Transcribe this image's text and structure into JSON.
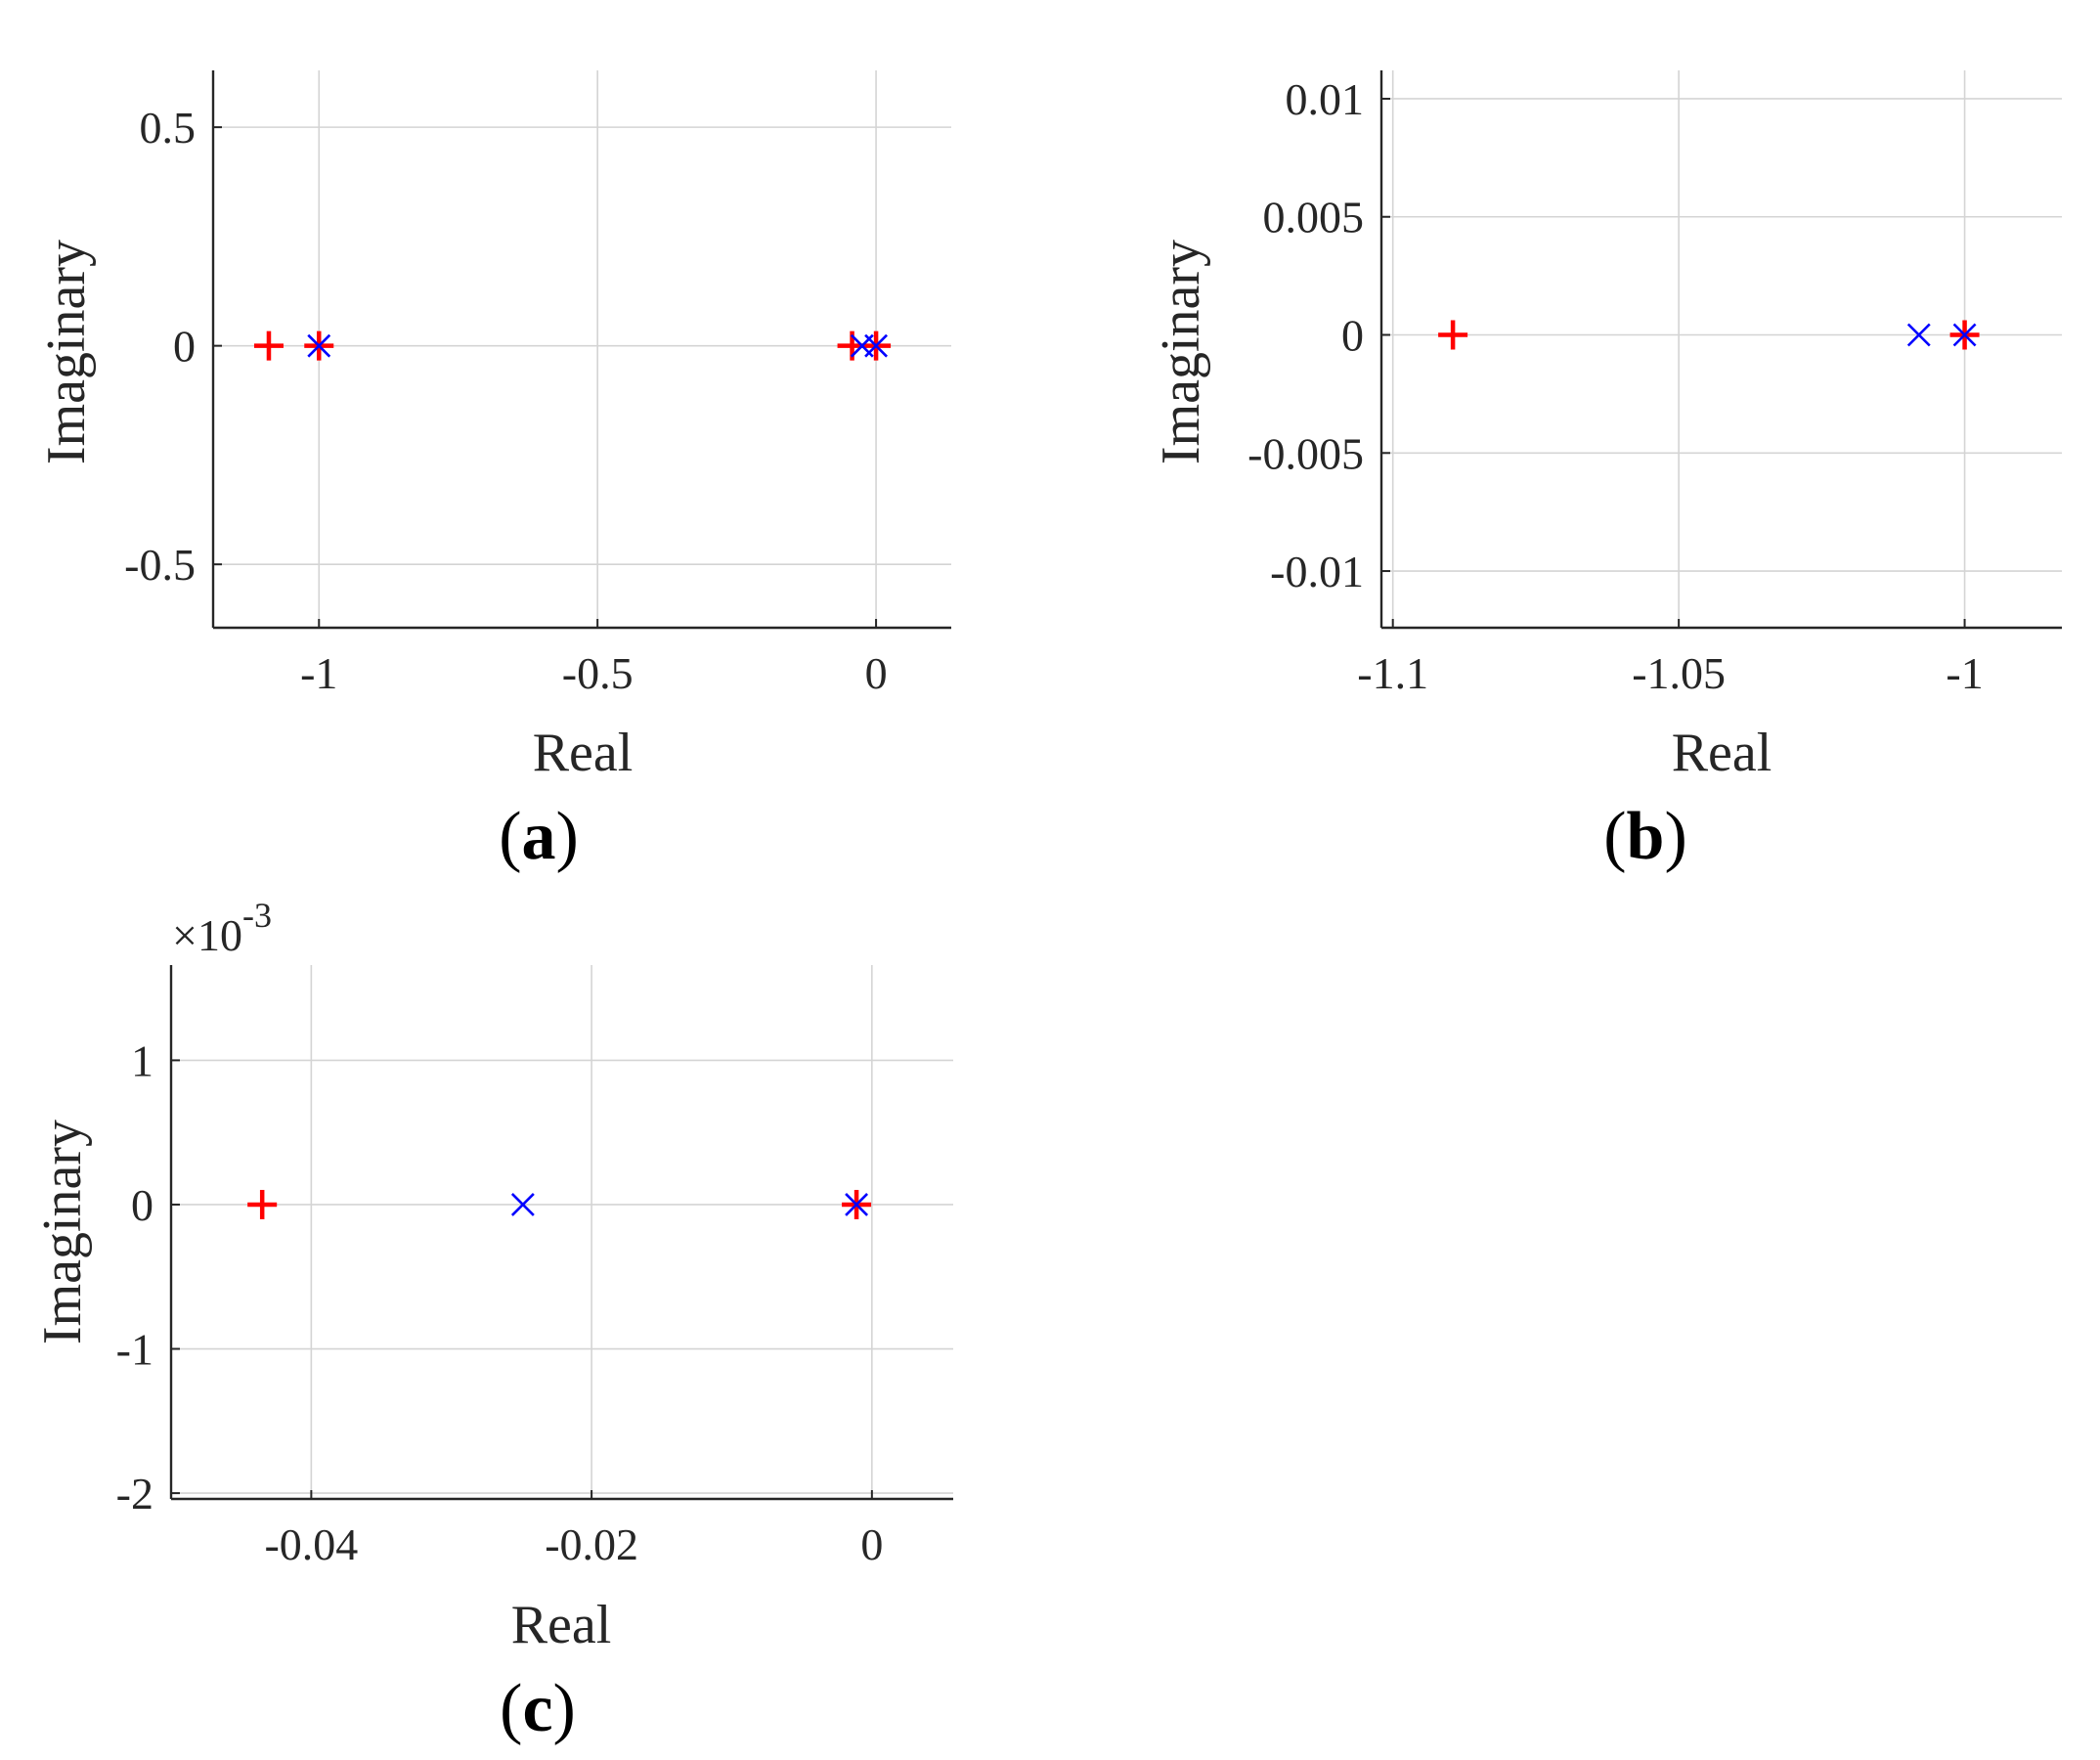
{
  "figure": {
    "colors": {
      "open_loop": "#ff0000",
      "closed_loop": "#0000ff",
      "grid": "#d4d4d4",
      "axes": "#262626"
    }
  },
  "chart_data": [
    {
      "id": "a",
      "type": "scatter",
      "panel_label": "a",
      "xlabel": "Real",
      "ylabel": "Imaginary",
      "xlim": [
        -1.19,
        0.135
      ],
      "ylim": [
        -0.645,
        0.63
      ],
      "x_ticks": [
        -1,
        -0.5,
        0
      ],
      "x_tick_labels": [
        "-1",
        "-0.5",
        "0"
      ],
      "y_ticks": [
        -0.5,
        0,
        0.5
      ],
      "y_tick_labels": [
        "-0.5",
        "0",
        "0.5"
      ],
      "exponent_label": "",
      "grid": true,
      "series": [
        {
          "name": "plus markers",
          "marker": "plus",
          "color": "#ff0000",
          "points": [
            [
              -1.09,
              0
            ],
            [
              -1.0,
              0
            ],
            [
              -0.043,
              0
            ],
            [
              0.0,
              0
            ]
          ]
        },
        {
          "name": "cross markers",
          "marker": "cross",
          "color": "#0000ff",
          "points": [
            [
              -1.0,
              0
            ],
            [
              -0.025,
              0
            ],
            [
              0.0,
              0
            ]
          ]
        }
      ]
    },
    {
      "id": "b",
      "type": "scatter",
      "panel_label": "b",
      "xlabel": "Real",
      "ylabel": "Imaginary",
      "xlim": [
        -1.102,
        -0.983
      ],
      "ylim": [
        -0.0124,
        0.0112
      ],
      "x_ticks": [
        -1.1,
        -1.05,
        -1
      ],
      "x_tick_labels": [
        "-1.1",
        "-1.05",
        "-1"
      ],
      "y_ticks": [
        -0.01,
        -0.005,
        0,
        0.005,
        0.01
      ],
      "y_tick_labels": [
        "-0.01",
        "-0.005",
        "0",
        "0.005",
        "0.01"
      ],
      "exponent_label": "",
      "grid": true,
      "series": [
        {
          "name": "plus markers",
          "marker": "plus",
          "color": "#ff0000",
          "points": [
            [
              -1.0895,
              0
            ],
            [
              -1.0,
              0
            ]
          ]
        },
        {
          "name": "cross markers",
          "marker": "cross",
          "color": "#0000ff",
          "points": [
            [
              -1.008,
              0
            ],
            [
              -1.0,
              0
            ]
          ]
        }
      ]
    },
    {
      "id": "c",
      "type": "scatter",
      "panel_label": "c",
      "xlabel": "Real",
      "ylabel": "Imaginary",
      "xlim": [
        -0.05,
        0.0058
      ],
      "ylim": [
        -2.04,
        1.66
      ],
      "x_ticks": [
        -0.04,
        -0.02,
        0
      ],
      "x_tick_labels": [
        "-0.04",
        "-0.02",
        "0"
      ],
      "y_ticks": [
        -2,
        -1,
        0,
        1
      ],
      "y_tick_labels": [
        "-2",
        "-1",
        "0",
        "1"
      ],
      "exponent_label": "×10",
      "exponent_power": "-3",
      "grid": true,
      "series": [
        {
          "name": "plus markers",
          "marker": "plus",
          "color": "#ff0000",
          "points": [
            [
              -0.0435,
              0
            ],
            [
              -0.0011,
              0
            ]
          ]
        },
        {
          "name": "cross markers",
          "marker": "cross",
          "color": "#0000ff",
          "points": [
            [
              -0.0249,
              0
            ],
            [
              -0.0011,
              0
            ]
          ]
        }
      ]
    }
  ]
}
